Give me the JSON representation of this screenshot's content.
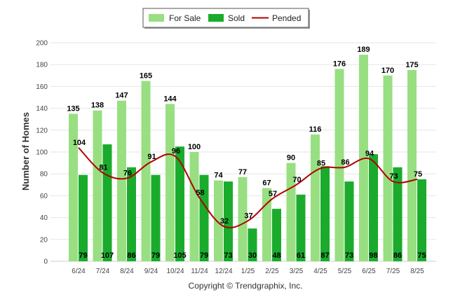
{
  "chart_data": {
    "type": "bar",
    "title": "",
    "xlabel": "",
    "ylabel": "Number of Homes",
    "ylim": [
      0,
      200
    ],
    "yticks": [
      0,
      20,
      40,
      60,
      80,
      100,
      120,
      140,
      160,
      180,
      200
    ],
    "grid": true,
    "legend_position": "top-center",
    "categories": [
      "6/24",
      "7/24",
      "8/24",
      "9/24",
      "10/24",
      "11/24",
      "12/24",
      "1/25",
      "2/25",
      "3/25",
      "4/25",
      "5/25",
      "6/25",
      "7/25",
      "8/25"
    ],
    "series": [
      {
        "name": "For Sale",
        "type": "bar",
        "color": "#98df82",
        "values": [
          135,
          138,
          147,
          165,
          144,
          100,
          74,
          77,
          67,
          90,
          116,
          176,
          189,
          170,
          175
        ]
      },
      {
        "name": "Sold",
        "type": "bar",
        "color": "#1aab2c",
        "values": [
          79,
          107,
          86,
          79,
          105,
          79,
          73,
          30,
          48,
          61,
          87,
          73,
          98,
          86,
          75
        ]
      },
      {
        "name": "Pended",
        "type": "line",
        "color": "#b20000",
        "values": [
          104,
          81,
          76,
          91,
          96,
          58,
          32,
          37,
          57,
          70,
          85,
          86,
          94,
          73,
          75
        ]
      }
    ],
    "footer": "Copyright © Trendgraphix, Inc."
  }
}
